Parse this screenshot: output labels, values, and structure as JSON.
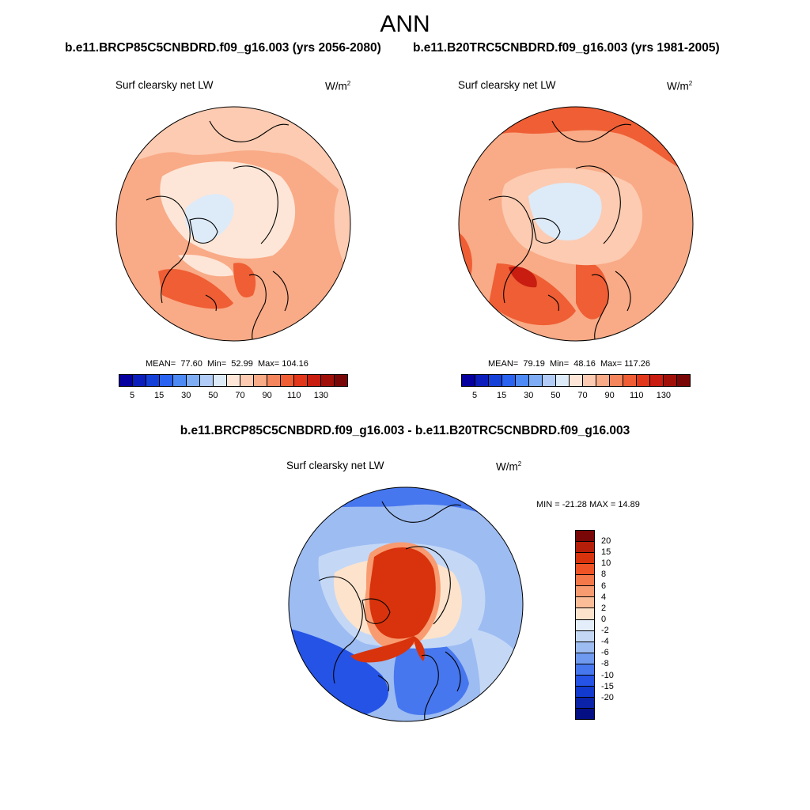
{
  "title": "ANN",
  "top_left": {
    "case": "b.e11.BRCP85C5CNBDRD.f09_g16.003 (yrs 2056-2080)",
    "variable": "Surf clearsky net LW",
    "units": "W/m",
    "units_exp": "2",
    "stats": {
      "mean_label": "MEAN=",
      "mean": "77.60",
      "min_label": "Min=",
      "min": "52.99",
      "max_label": "Max=",
      "max": "104.16"
    }
  },
  "top_right": {
    "case": "b.e11.B20TRC5CNBDRD.f09_g16.003 (yrs 1981-2005)",
    "variable": "Surf clearsky net LW",
    "units": "W/m",
    "units_exp": "2",
    "stats": {
      "mean_label": "MEAN=",
      "mean": "79.19",
      "min_label": "Min=",
      "min": "48.16",
      "max_label": "Max=",
      "max": "117.26"
    }
  },
  "bottom": {
    "title": "b.e11.BRCP85C5CNBDRD.f09_g16.003 - b.e11.B20TRC5CNBDRD.f09_g16.003",
    "variable": "Surf clearsky net LW",
    "units": "W/m",
    "units_exp": "2",
    "minmax": "MIN = -21.28 MAX =  14.89"
  },
  "top_colorbar": {
    "colors": [
      "#06009e",
      "#0c1fbd",
      "#1641d9",
      "#2a63ef",
      "#4d8af5",
      "#7eadf5",
      "#b1ccf6",
      "#ddeaf8",
      "#fde6d7",
      "#fccbb1",
      "#f9aa86",
      "#f5855c",
      "#ef5e34",
      "#e3371b",
      "#c81d10",
      "#a01009",
      "#7a0707"
    ],
    "ticks": [
      "5",
      "15",
      "30",
      "50",
      "70",
      "90",
      "110",
      "130"
    ]
  },
  "diff_colorbar": {
    "colors": [
      "#7a0707",
      "#b51e08",
      "#d8330c",
      "#ef5326",
      "#f5784a",
      "#f99b70",
      "#fbbd98",
      "#fde3cc",
      "#e3eefa",
      "#c4d8f6",
      "#9dbcf2",
      "#6f9af0",
      "#4777ee",
      "#2553e6",
      "#123ace",
      "#0a23a8",
      "#040f83"
    ],
    "ticks": [
      "20",
      "15",
      "10",
      "8",
      "6",
      "4",
      "2",
      "0",
      "-2",
      "-4",
      "-6",
      "-8",
      "-10",
      "-15",
      "-20"
    ]
  },
  "map_colors": {
    "ocean_warm": "#f9aa86",
    "ocean_hot": "#ef5e34",
    "mid": "#fccbb1",
    "pale": "#fde6d7",
    "icecap": "#ddeaf8",
    "diff_base": "#9dbcf2",
    "diff_deep": "#2553e6",
    "diff_mid": "#4777ee",
    "diff_pale": "#c4d8f6",
    "diff_hot": "#d8330c",
    "diff_warm": "#f99b70",
    "diff_peach": "#fde3cc"
  }
}
